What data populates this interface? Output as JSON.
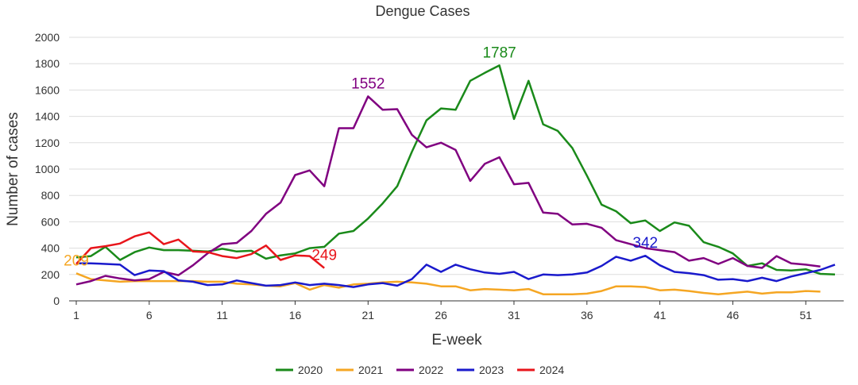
{
  "chart_data": {
    "type": "line",
    "title": "Dengue Cases",
    "xlabel": "E-week",
    "ylabel": "Number of cases",
    "xlim": [
      1,
      53
    ],
    "ylim": [
      0,
      2000
    ],
    "x_ticks": [
      1,
      6,
      11,
      16,
      21,
      26,
      31,
      36,
      41,
      46,
      51
    ],
    "y_ticks": [
      0,
      200,
      400,
      600,
      800,
      1000,
      1200,
      1400,
      1600,
      1800,
      2000
    ],
    "grid": "horizontal",
    "legend_position": "bottom",
    "series": [
      {
        "name": "2020",
        "color": "#1a8a1a",
        "values": [
          330,
          340,
          410,
          310,
          370,
          405,
          385,
          385,
          380,
          375,
          395,
          375,
          380,
          320,
          345,
          360,
          400,
          410,
          510,
          530,
          625,
          740,
          870,
          1130,
          1370,
          1460,
          1450,
          1670,
          1730,
          1787,
          1380,
          1670,
          1340,
          1290,
          1160,
          950,
          730,
          680,
          590,
          610,
          530,
          595,
          570,
          445,
          410,
          360,
          265,
          285,
          235,
          230,
          240,
          205,
          200
        ]
      },
      {
        "name": "2021",
        "color": "#f5a623",
        "values": [
          209,
          165,
          155,
          145,
          150,
          150,
          150,
          150,
          150,
          145,
          145,
          130,
          125,
          115,
          110,
          135,
          85,
          120,
          100,
          125,
          130,
          140,
          145,
          140,
          130,
          110,
          110,
          80,
          90,
          85,
          80,
          90,
          50,
          50,
          50,
          55,
          75,
          110,
          110,
          105,
          80,
          85,
          75,
          60,
          50,
          60,
          70,
          55,
          65,
          65,
          75,
          70
        ]
      },
      {
        "name": "2022",
        "color": "#800080",
        "values": [
          125,
          150,
          190,
          170,
          155,
          165,
          220,
          195,
          270,
          360,
          430,
          440,
          530,
          660,
          745,
          955,
          990,
          870,
          1310,
          1310,
          1552,
          1450,
          1455,
          1260,
          1165,
          1200,
          1145,
          910,
          1040,
          1090,
          885,
          895,
          670,
          660,
          580,
          585,
          555,
          460,
          430,
          400,
          385,
          370,
          305,
          325,
          280,
          325,
          265,
          250,
          340,
          285,
          275,
          260
        ]
      },
      {
        "name": "2023",
        "color": "#1a1acc",
        "values": [
          285,
          285,
          280,
          275,
          195,
          230,
          225,
          155,
          145,
          120,
          125,
          155,
          135,
          115,
          120,
          140,
          120,
          130,
          120,
          105,
          125,
          135,
          115,
          165,
          275,
          220,
          275,
          240,
          215,
          205,
          220,
          165,
          200,
          195,
          200,
          215,
          265,
          335,
          305,
          342,
          270,
          220,
          210,
          195,
          160,
          165,
          150,
          175,
          150,
          185,
          210,
          235,
          275
        ]
      },
      {
        "name": "2024",
        "color": "#e8151b",
        "values": [
          280,
          400,
          415,
          435,
          490,
          520,
          430,
          465,
          375,
          370,
          340,
          325,
          355,
          420,
          310,
          345,
          340,
          249
        ]
      }
    ],
    "annotations": [
      {
        "text": "1787",
        "x": 30,
        "y": 1787,
        "color": "#1a8a1a"
      },
      {
        "text": "1552",
        "x": 21,
        "y": 1552,
        "color": "#800080"
      },
      {
        "text": "342",
        "x": 40,
        "y": 342,
        "color": "#1a1acc"
      },
      {
        "text": "249",
        "x": 18,
        "y": 249,
        "color": "#e8151b"
      },
      {
        "text": "209",
        "x": 1,
        "y": 209,
        "color": "#f5a623"
      }
    ]
  }
}
